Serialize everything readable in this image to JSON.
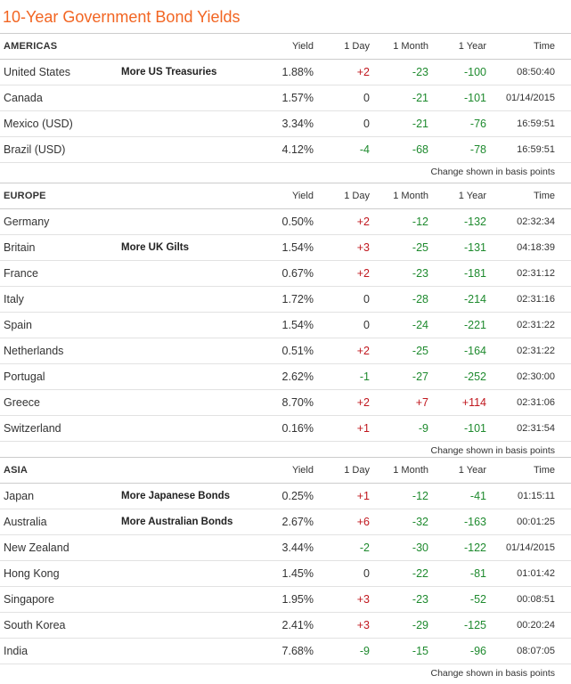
{
  "page_title": "10-Year Government Bond Yields",
  "columns": {
    "yield": "Yield",
    "day": "1 Day",
    "month": "1 Month",
    "year": "1 Year",
    "time": "Time"
  },
  "footnote": "Change shown in basis points",
  "colors": {
    "title": "#f26522",
    "positive": "#c0171e",
    "negative": "#1e8a2e"
  },
  "sections": [
    {
      "name": "AMERICAS",
      "rows": [
        {
          "country": "United States",
          "link": "More US Treasuries",
          "yield": "1.88%",
          "day": "+2",
          "month": "-23",
          "year": "-100",
          "time": "08:50:40"
        },
        {
          "country": "Canada",
          "link": "",
          "yield": "1.57%",
          "day": "0",
          "month": "-21",
          "year": "-101",
          "time": "01/14/2015"
        },
        {
          "country": "Mexico (USD)",
          "link": "",
          "yield": "3.34%",
          "day": "0",
          "month": "-21",
          "year": "-76",
          "time": "16:59:51"
        },
        {
          "country": "Brazil (USD)",
          "link": "",
          "yield": "4.12%",
          "day": "-4",
          "month": "-68",
          "year": "-78",
          "time": "16:59:51"
        }
      ]
    },
    {
      "name": "EUROPE",
      "rows": [
        {
          "country": "Germany",
          "link": "",
          "yield": "0.50%",
          "day": "+2",
          "month": "-12",
          "year": "-132",
          "time": "02:32:34"
        },
        {
          "country": "Britain",
          "link": "More UK Gilts",
          "yield": "1.54%",
          "day": "+3",
          "month": "-25",
          "year": "-131",
          "time": "04:18:39"
        },
        {
          "country": "France",
          "link": "",
          "yield": "0.67%",
          "day": "+2",
          "month": "-23",
          "year": "-181",
          "time": "02:31:12"
        },
        {
          "country": "Italy",
          "link": "",
          "yield": "1.72%",
          "day": "0",
          "month": "-28",
          "year": "-214",
          "time": "02:31:16"
        },
        {
          "country": "Spain",
          "link": "",
          "yield": "1.54%",
          "day": "0",
          "month": "-24",
          "year": "-221",
          "time": "02:31:22"
        },
        {
          "country": "Netherlands",
          "link": "",
          "yield": "0.51%",
          "day": "+2",
          "month": "-25",
          "year": "-164",
          "time": "02:31:22"
        },
        {
          "country": "Portugal",
          "link": "",
          "yield": "2.62%",
          "day": "-1",
          "month": "-27",
          "year": "-252",
          "time": "02:30:00"
        },
        {
          "country": "Greece",
          "link": "",
          "yield": "8.70%",
          "day": "+2",
          "month": "+7",
          "year": "+114",
          "time": "02:31:06"
        },
        {
          "country": "Switzerland",
          "link": "",
          "yield": "0.16%",
          "day": "+1",
          "month": "-9",
          "year": "-101",
          "time": "02:31:54"
        }
      ]
    },
    {
      "name": "ASIA",
      "rows": [
        {
          "country": "Japan",
          "link": "More Japanese Bonds",
          "yield": "0.25%",
          "day": "+1",
          "month": "-12",
          "year": "-41",
          "time": "01:15:11"
        },
        {
          "country": "Australia",
          "link": "More Australian Bonds",
          "yield": "2.67%",
          "day": "+6",
          "month": "-32",
          "year": "-163",
          "time": "00:01:25"
        },
        {
          "country": "New Zealand",
          "link": "",
          "yield": "3.44%",
          "day": "-2",
          "month": "-30",
          "year": "-122",
          "time": "01/14/2015"
        },
        {
          "country": "Hong Kong",
          "link": "",
          "yield": "1.45%",
          "day": "0",
          "month": "-22",
          "year": "-81",
          "time": "01:01:42"
        },
        {
          "country": "Singapore",
          "link": "",
          "yield": "1.95%",
          "day": "+3",
          "month": "-23",
          "year": "-52",
          "time": "00:08:51"
        },
        {
          "country": "South Korea",
          "link": "",
          "yield": "2.41%",
          "day": "+3",
          "month": "-29",
          "year": "-125",
          "time": "00:20:24"
        },
        {
          "country": "India",
          "link": "",
          "yield": "7.68%",
          "day": "-9",
          "month": "-15",
          "year": "-96",
          "time": "08:07:05"
        }
      ]
    }
  ]
}
